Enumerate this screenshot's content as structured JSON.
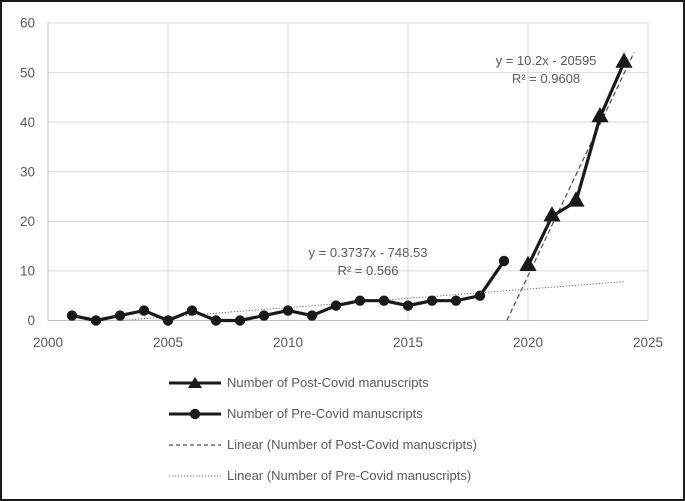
{
  "colors": {
    "series": "#1a1a1a",
    "gridline": "#d9d9d9",
    "axis_line": "#bfbfbf",
    "text": "#595959",
    "trendline_dashed": "#4d4d4d",
    "trendline_dotted": "#737373",
    "figure_border": "#1a1a1a",
    "background": "#ffffff"
  },
  "chart_data": {
    "type": "line",
    "title": "",
    "xlabel": "",
    "ylabel": "",
    "grid": true,
    "axes": {
      "x": {
        "min": 2000,
        "max": 2025,
        "ticks": [
          2000,
          2005,
          2010,
          2015,
          2020,
          2025
        ]
      },
      "y": {
        "min": 0,
        "max": 60,
        "ticks": [
          0,
          10,
          20,
          30,
          40,
          50,
          60
        ]
      }
    },
    "series": [
      {
        "name": "Number of Pre-Covid manuscripts",
        "marker": "circle",
        "x": [
          2001,
          2002,
          2003,
          2004,
          2005,
          2006,
          2007,
          2008,
          2009,
          2010,
          2011,
          2012,
          2013,
          2014,
          2015,
          2016,
          2017,
          2018,
          2019
        ],
        "values": [
          1,
          0,
          1,
          2,
          0,
          2,
          0,
          0,
          1,
          2,
          1,
          3,
          4,
          4,
          3,
          4,
          4,
          5,
          12
        ]
      },
      {
        "name": "Number of Post-Covid manuscripts",
        "marker": "triangle",
        "x": [
          2020,
          2021,
          2022,
          2023,
          2024
        ],
        "values": [
          11,
          21,
          24,
          41,
          52
        ]
      }
    ],
    "trendlines": [
      {
        "name": "Linear (Number of Post-Covid manuscripts)",
        "style": "dashed",
        "slope": 10.2,
        "intercept": -20595,
        "x_start": 2019.12,
        "x_end": 2024.42,
        "equation": "y = 10.2x - 20595",
        "r_squared": "R² = 0.9608"
      },
      {
        "name": "Linear (Number of Pre-Covid manuscripts)",
        "style": "dotted",
        "slope": 0.3737,
        "intercept": -748.53,
        "x_start": 2003.0,
        "x_end": 2024.0,
        "equation": "y = 0.3737x - 748.53",
        "r_squared": "R² = 0.566"
      }
    ],
    "annotations": [
      {
        "line1": "y = 10.2x - 20595",
        "line2": "R² = 0.9608"
      },
      {
        "line1": "y = 0.3737x - 748.53",
        "line2": "R² = 0.566"
      }
    ],
    "legend": {
      "position": "bottom-left",
      "items": [
        {
          "label": "Number of Post-Covid manuscripts",
          "marker": "line-triangle-icon"
        },
        {
          "label": "Number of Pre-Covid manuscripts",
          "marker": "line-circle-icon"
        },
        {
          "label": "Linear (Number of Post-Covid manuscripts)",
          "marker": "dashed-line-icon"
        },
        {
          "label": "Linear (Number of Pre-Covid manuscripts)",
          "marker": "dotted-line-icon"
        }
      ]
    }
  }
}
